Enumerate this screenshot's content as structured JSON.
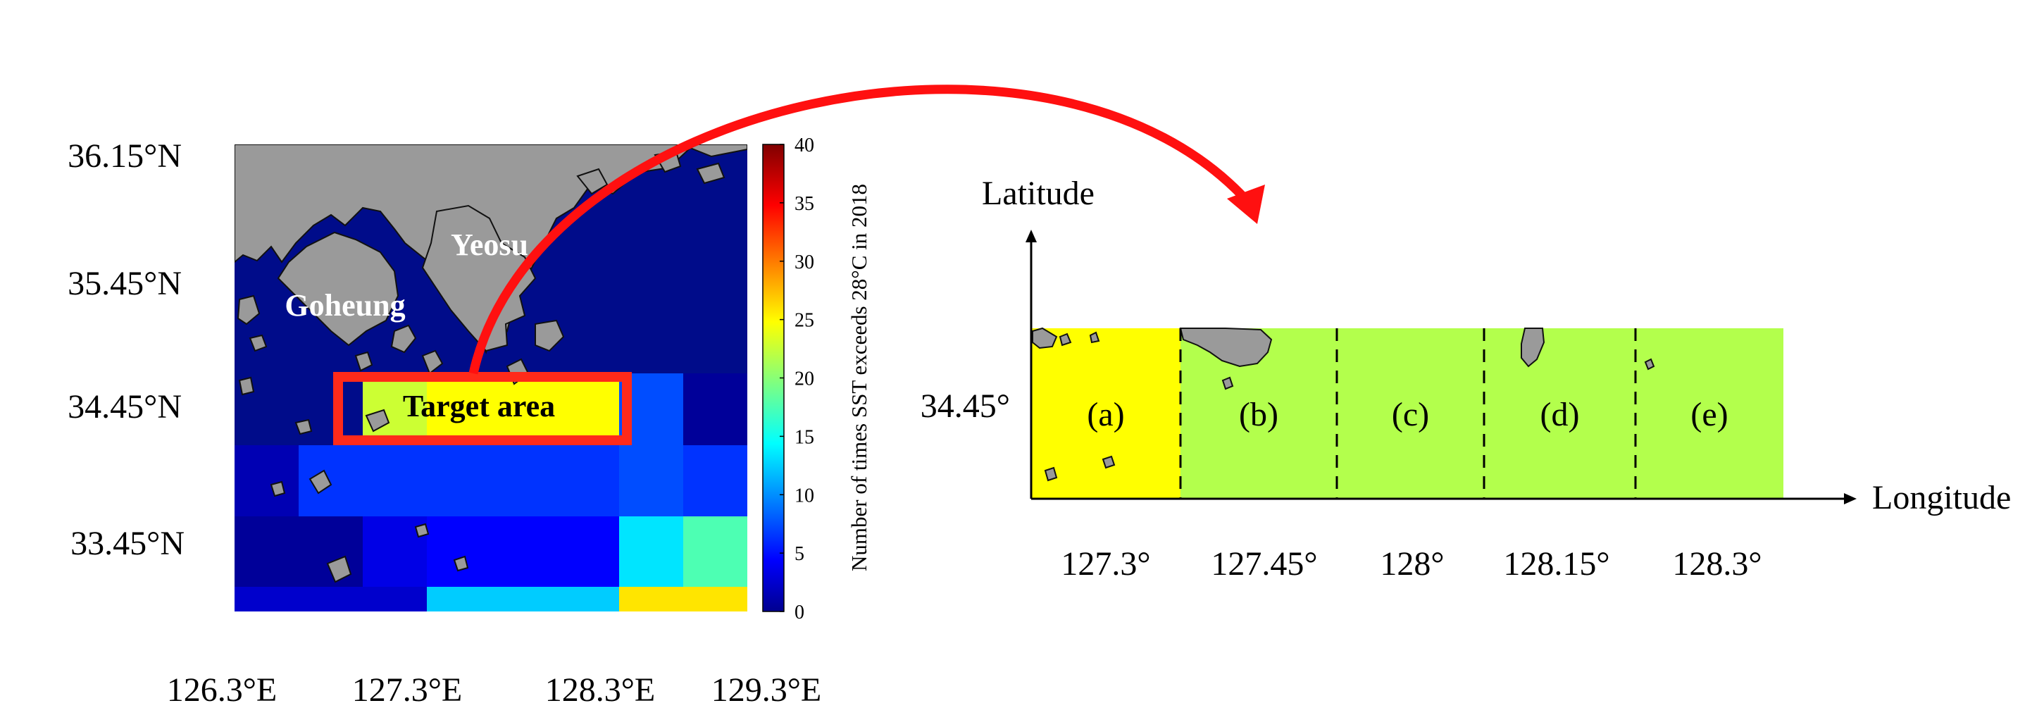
{
  "map": {
    "lat_labels": [
      "36.15°N",
      "35.45°N",
      "34.45°N",
      "33.45°N"
    ],
    "lon_labels": [
      "126.3°E",
      "127.3°E",
      "128.3°E",
      "129.3°E"
    ],
    "place_labels": {
      "yeosu": "Yeosu",
      "goheung": "Goheung"
    },
    "target_label": "Target area",
    "colors": {
      "sea": "#000c8a",
      "land": "#9a9a9a",
      "target_box": "#ff2a1a",
      "arrow": "#ff1010"
    }
  },
  "colorbar": {
    "label": "Number of times SST exceeds  28°C  in 2018",
    "ticks": [
      "0",
      "5",
      "10",
      "15",
      "20",
      "25",
      "30",
      "35",
      "40"
    ],
    "min": 0,
    "max": 40,
    "colormap": "jet"
  },
  "grid": {
    "note_cols": 8,
    "rows": 4,
    "values": [
      [
        null,
        null,
        null,
        null,
        null,
        null,
        null,
        null
      ],
      [
        null,
        null,
        23,
        25,
        25,
        25,
        8,
        1
      ],
      [
        2,
        7,
        7,
        7,
        7,
        7,
        8,
        7
      ],
      [
        1,
        1,
        4,
        5,
        5,
        5,
        14,
        18
      ]
    ],
    "bottom_strip": [
      3,
      3,
      3,
      13,
      13,
      13,
      26,
      26
    ]
  },
  "detail": {
    "y_axis_label": "Latitude",
    "x_axis_label": "Longitude",
    "y_tick": "34.45°",
    "x_ticks": [
      "127.3°",
      "127.45°",
      "128°",
      "128.15°",
      "128.3°"
    ],
    "cells": [
      {
        "label": "(a)",
        "value": 25
      },
      {
        "label": "(b)",
        "value": 22
      },
      {
        "label": "(c)",
        "value": 22
      },
      {
        "label": "(d)",
        "value": 22
      },
      {
        "label": "(e)",
        "value": 22
      }
    ]
  }
}
